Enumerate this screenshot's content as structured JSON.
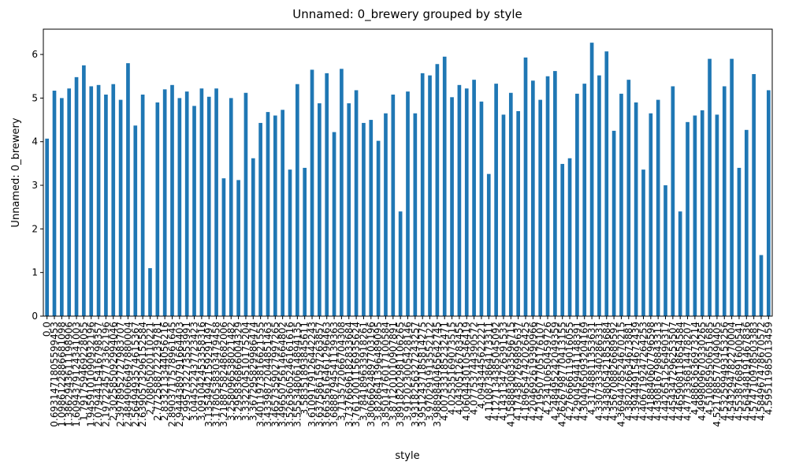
{
  "chart_data": {
    "type": "bar",
    "title": "Unnamed: 0_brewery grouped by style",
    "x_label": "style",
    "y_label": "Unnamed: 0_brewery",
    "color": "#1f77b4",
    "categories": [
      "0.0",
      "0.6931471805599453",
      "1.0986122886681098",
      "1.3862943611198906",
      "1.6094379124341003",
      "1.791759469228055",
      "1.9459101090932196",
      "2.0794415416798357",
      "2.1972245773362196",
      "2.302585092994046",
      "2.3978952727983707",
      "2.4849066497880004",
      "2.5649493574615367",
      "2.6390573296152584",
      "2.70805020110221",
      "2.772588722239781",
      "2.833213344056216",
      "2.8903717578961645",
      "2.9444389791664403",
      "2.995732273553991",
      "3.044522437723423",
      "3.091042453358316",
      "3.1354942159291497",
      "3.1780538303479458",
      "3.2188758248682006",
      "3.258096538021482",
      "3.295836866004329",
      "3.332204510175204",
      "3.367295829986474",
      "3.4011973816621555",
      "3.4339872044851463",
      "3.4657359027997265",
      "3.4965075614664802",
      "3.5263605246161616",
      "3.5553480614894135",
      "3.58351893845611",
      "3.6109179126442243",
      "3.6375861597263857",
      "3.6635616461296463",
      "3.6888794541139363",
      "3.713572066704308",
      "3.7376696182833684",
      "3.7612001156935624",
      "3.784189633918261",
      "3.8066624897703196",
      "3.828641396489095",
      "3.8501476017100584",
      "3.871201010907891",
      "3.8918202981106265",
      "3.912023005428146",
      "3.9318256327243257",
      "3.9512437185814275",
      "3.970291913552122",
      "3.9889840465642745",
      "4.007333185232471",
      "4.02535169073515",
      "4.04305126783455",
      "4.060443010546419",
      "4.07753744390572",
      "4.0943445622221",
      "4.110873864173311",
      "4.127134385045092",
      "4.143134726391533",
      "4.1588830833596715",
      "4.174387269895637",
      "4.189654742026425",
      "4.204692619390966",
      "4.219507705176107",
      "4.23410650459726",
      "4.248495242049359",
      "4.2626798770413155",
      "4.276666119016055",
      "4.290459441148391",
      "4.304065093204169",
      "4.31748811353631",
      "4.330733340286331",
      "4.343805421853684",
      "4.356708826689592",
      "4.3694478524670215",
      "4.382026634673881",
      "4.394449154672439",
      "4.406719247264253",
      "4.418840607796598",
      "4.430816798843313",
      "4.442651256490317",
      "4.454347296253507",
      "4.465908118654584",
      "4.477336814478207",
      "4.48863636973214",
      "4.499809670330265",
      "4.51085950651685",
      "4.5217885770490405",
      "4.532599493153256",
      "4.543294782270004",
      "4.553876891600541",
      "4.564348191467836",
      "4.574710978503383",
      "4.584967478670572",
      "4.59511985013459"
    ],
    "values": [
      4.07,
      5.17,
      5.0,
      5.22,
      5.48,
      5.75,
      5.27,
      5.3,
      5.08,
      5.32,
      4.96,
      5.8,
      4.37,
      5.08,
      1.1,
      4.9,
      5.2,
      5.3,
      5.0,
      5.15,
      4.82,
      5.22,
      5.03,
      5.22,
      3.16,
      5.0,
      3.12,
      5.12,
      3.62,
      4.43,
      4.68,
      4.6,
      4.73,
      3.36,
      5.32,
      3.4,
      5.65,
      4.88,
      5.57,
      4.22,
      5.67,
      4.88,
      5.18,
      4.43,
      4.5,
      4.02,
      4.65,
      5.08,
      2.4,
      5.15,
      4.65,
      5.57,
      5.52,
      5.78,
      5.95,
      5.02,
      5.3,
      5.22,
      5.42,
      4.92,
      3.26,
      5.33,
      4.62,
      5.12,
      4.7,
      5.93,
      5.4,
      4.96,
      5.5,
      5.62,
      3.49,
      3.62,
      5.1,
      5.33,
      6.27,
      5.52,
      6.07,
      4.25,
      5.1,
      5.42,
      4.9,
      3.36,
      4.65,
      4.96,
      3.0,
      5.27,
      2.4,
      4.45,
      4.6,
      4.72,
      5.9,
      4.62,
      5.27,
      5.9,
      3.4,
      4.27,
      5.55,
      1.4,
      5.18
    ],
    "ylim": [
      0,
      6.58
    ],
    "yticks": [
      0,
      1,
      2,
      3,
      4,
      5,
      6
    ]
  }
}
